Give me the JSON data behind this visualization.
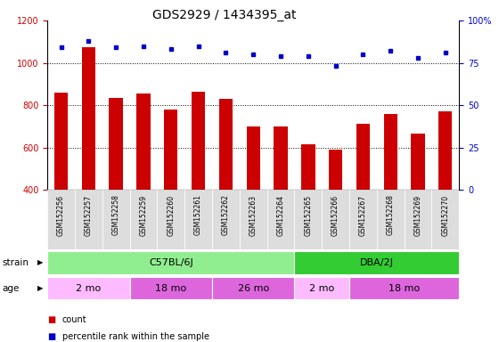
{
  "title": "GDS2929 / 1434395_at",
  "samples": [
    "GSM152256",
    "GSM152257",
    "GSM152258",
    "GSM152259",
    "GSM152260",
    "GSM152261",
    "GSM152262",
    "GSM152263",
    "GSM152264",
    "GSM152265",
    "GSM152266",
    "GSM152267",
    "GSM152268",
    "GSM152269",
    "GSM152270"
  ],
  "counts": [
    860,
    1075,
    835,
    855,
    780,
    865,
    830,
    700,
    700,
    615,
    590,
    710,
    760,
    665,
    770
  ],
  "percentile": [
    84,
    88,
    84,
    85,
    83,
    85,
    81,
    80,
    79,
    79,
    73,
    80,
    82,
    78,
    81
  ],
  "ylim_left": [
    400,
    1200
  ],
  "ylim_right": [
    0,
    100
  ],
  "yticks_left": [
    400,
    600,
    800,
    1000,
    1200
  ],
  "yticks_right": [
    0,
    25,
    50,
    75,
    100
  ],
  "ytick_right_labels": [
    "0",
    "25",
    "50",
    "75",
    "100%"
  ],
  "strain_groups": [
    {
      "label": "C57BL/6J",
      "start": 0,
      "end": 9,
      "color": "#90EE90"
    },
    {
      "label": "DBA/2J",
      "start": 9,
      "end": 15,
      "color": "#33CC33"
    }
  ],
  "age_groups": [
    {
      "label": "2 mo",
      "start": 0,
      "end": 3,
      "color": "#FFBBFF"
    },
    {
      "label": "18 mo",
      "start": 3,
      "end": 6,
      "color": "#DD66DD"
    },
    {
      "label": "26 mo",
      "start": 6,
      "end": 9,
      "color": "#DD66DD"
    },
    {
      "label": "2 mo",
      "start": 9,
      "end": 11,
      "color": "#FFBBFF"
    },
    {
      "label": "18 mo",
      "start": 11,
      "end": 15,
      "color": "#DD66DD"
    }
  ],
  "bar_color": "#CC0000",
  "dot_color": "#0000CC",
  "left_label_color": "#CC0000",
  "right_label_color": "#0000CC",
  "grid_dotted_vals": [
    600,
    800,
    1000
  ],
  "legend_items": [
    {
      "color": "#CC0000",
      "label": "count"
    },
    {
      "color": "#0000CC",
      "label": "percentile rank within the sample"
    }
  ]
}
